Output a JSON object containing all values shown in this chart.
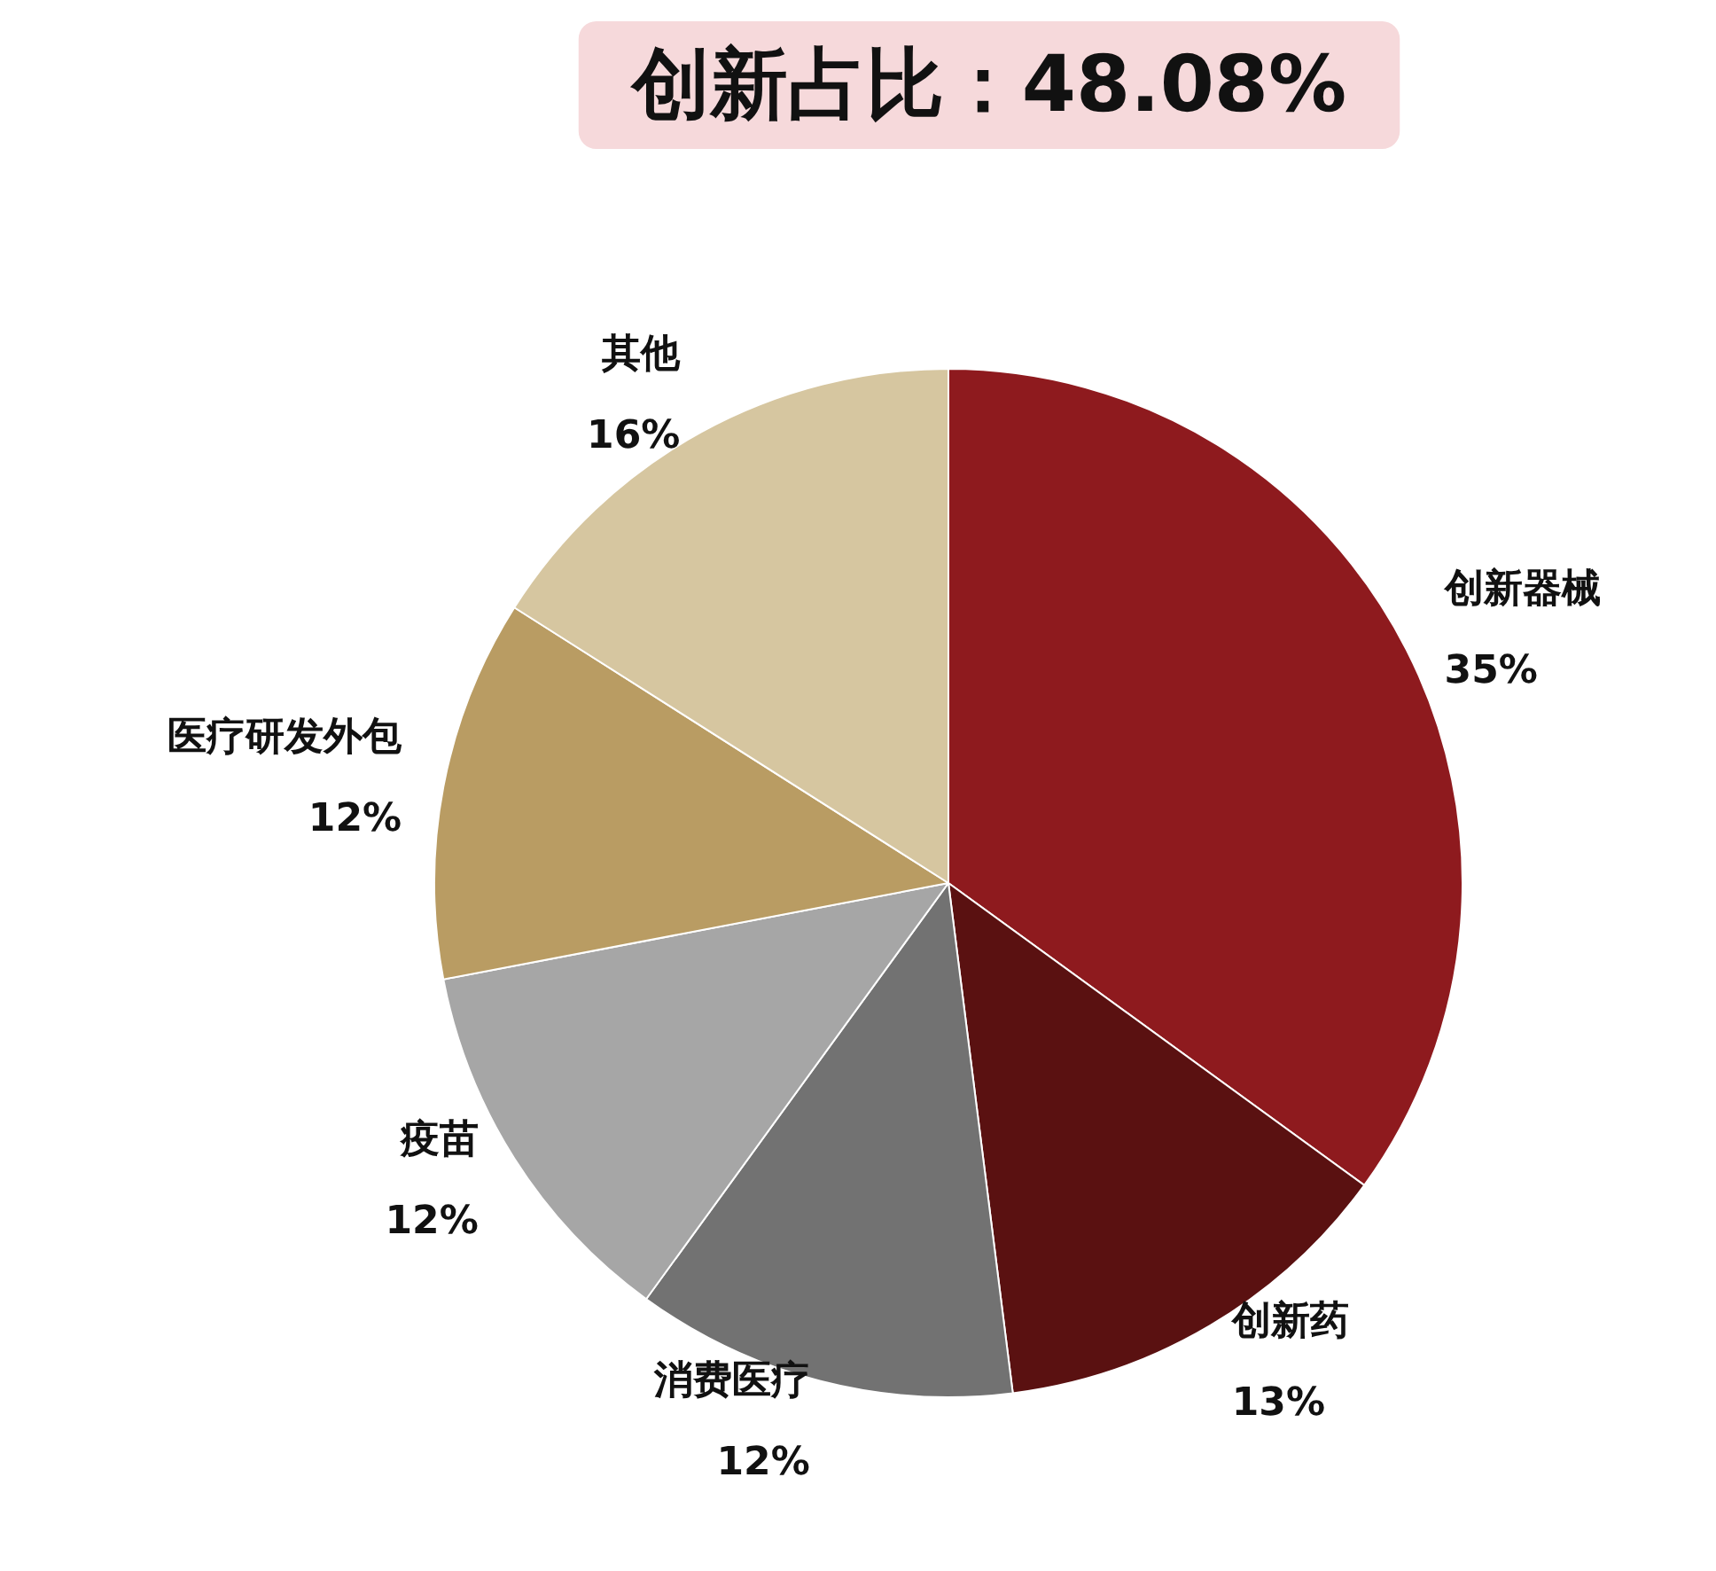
{
  "chart_data": {
    "type": "pie",
    "title": "创新占比：48.08%",
    "categories": [
      "创新器械",
      "创新药",
      "消费医疗",
      "疫苗",
      "医疗研发外包",
      "其他"
    ],
    "values": [
      35,
      13,
      12,
      12,
      12,
      16
    ],
    "value_labels": [
      "35%",
      "13%",
      "12%",
      "12%",
      "12%",
      "16%"
    ],
    "colors": [
      "#8e1a1e",
      "#5a1111",
      "#727272",
      "#a6a6a6",
      "#b99c63",
      "#d6c6a0"
    ],
    "legend": false
  }
}
